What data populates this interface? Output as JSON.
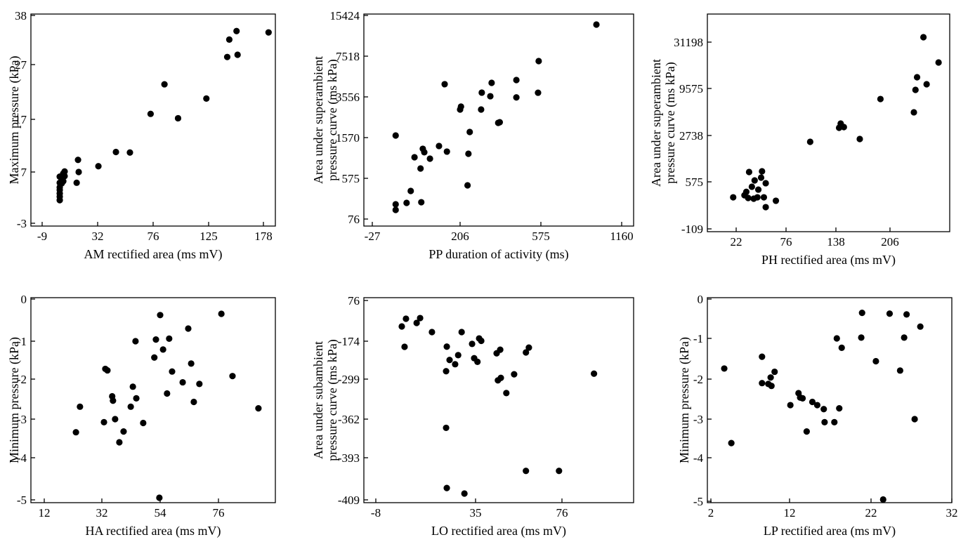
{
  "chart_data": [
    {
      "type": "scatter",
      "color": "#000000",
      "xlabel": "AM rectified area (ms mV)",
      "ylabel": [
        "Maximum pressure (kPa)"
      ],
      "xlim": [
        -17.3,
        189.6
      ],
      "xticks": [
        -9,
        32,
        76,
        125,
        178
      ],
      "ylim": [
        -3.5,
        38.3
      ],
      "yticks": [
        -3,
        7,
        17,
        27,
        38
      ],
      "x": [
        183,
        152,
        145,
        143,
        153,
        123,
        86,
        98,
        74,
        57.6,
        46.5,
        32.6,
        17.5,
        18,
        16.5,
        7.6,
        7.6,
        6.6,
        4,
        5.5,
        4,
        4,
        4,
        4,
        4,
        4,
        6.6
      ],
      "y": [
        34.2,
        34.5,
        32.6,
        28.7,
        29.2,
        20.8,
        23.4,
        17.2,
        18,
        10.7,
        10.8,
        8.1,
        9.3,
        7,
        4.9,
        7.1,
        6.2,
        5.2,
        6.1,
        4.8,
        4,
        3.5,
        2.8,
        2.2,
        1.5,
        4.9,
        6.7
      ]
    },
    {
      "type": "scatter",
      "color": "#000000",
      "xlabel": "PP duration of activity (ms)",
      "ylabel": [
        "Area under superambient",
        "pressure curve (ms kPa)"
      ],
      "xlim": [
        -49,
        1246
      ],
      "xticks": [
        -27,
        206,
        575,
        1160
      ],
      "ylim": [
        -10,
        15700
      ],
      "yticks": [
        76,
        575,
        1570,
        3556,
        7518,
        15424
      ],
      "x": [
        977,
        565,
        562,
        463,
        463,
        350,
        305,
        344,
        302,
        380,
        387,
        210,
        206,
        165,
        250,
        244,
        240,
        35,
        35,
        35,
        64,
        75,
        103,
        85,
        107,
        111,
        126,
        150,
        171,
        101
      ],
      "y": [
        13650,
        7040,
        3960,
        5195,
        3530,
        4920,
        3970,
        3620,
        2940,
        2290,
        2320,
        3080,
        2940,
        4790,
        1844,
        1175,
        489,
        1673,
        257,
        188,
        274,
        420,
        282,
        1090,
        1297,
        1211,
        1055,
        1365,
        1228,
        815
      ]
    },
    {
      "type": "scatter",
      "color": "#000000",
      "xlabel": "PH rectified area (ms mV)",
      "ylabel": [
        "Area under superambient",
        "pressure curve (ms kPa)"
      ],
      "xlim": [
        -7,
        281
      ],
      "xticks": [
        22,
        76,
        138,
        206
      ],
      "ylim": [
        -150,
        44300
      ],
      "yticks": [
        -109,
        575,
        2738,
        9575,
        31198
      ],
      "x": [
        248,
        267,
        240,
        252,
        238,
        236,
        194,
        144,
        142,
        148,
        168,
        106,
        41,
        39,
        36,
        50,
        49,
        42,
        54,
        46,
        45,
        35,
        52,
        65,
        54,
        19,
        31,
        33
      ],
      "y": [
        33490,
        21700,
        14820,
        11540,
        9370,
        6110,
        8040,
        4470,
        3860,
        3960,
        2575,
        2443,
        330,
        504,
        1034,
        1067,
        772,
        640,
        555,
        462,
        350,
        340,
        350,
        300,
        207,
        350,
        380,
        430
      ]
    },
    {
      "type": "scatter",
      "color": "#000000",
      "xlabel": "HA rectified area (ms mV)",
      "ylabel": [
        "Minimum pressure (kPa)"
      ],
      "xlim": [
        7.4,
        97.5
      ],
      "xticks": [
        12,
        32,
        54,
        76
      ],
      "ylim": [
        -5.07,
        0.03
      ],
      "yticks": [
        -5,
        -4,
        -3,
        -2,
        -1,
        0
      ],
      "x": [
        23,
        24.4,
        33.3,
        34.1,
        35.9,
        36.2,
        37,
        32.8,
        38.6,
        40.2,
        42.9,
        43.7,
        45,
        44.7,
        47.6,
        51.8,
        52.4,
        54,
        55.1,
        57.4,
        56.6,
        58.5,
        62.5,
        68.8,
        65.7,
        66.7,
        64.6,
        77.1,
        81.3,
        91.1,
        53.7
      ],
      "y": [
        -3.34,
        -2.69,
        -1.73,
        -1.77,
        -2.43,
        -2.54,
        -3,
        -3.08,
        -3.6,
        -3.32,
        -2.69,
        -2.19,
        -2.48,
        -1,
        -3.1,
        -1.43,
        -0.96,
        -0.38,
        -1.22,
        -0.94,
        -2.36,
        -1.8,
        -2.08,
        -2.12,
        -1.59,
        -2.57,
        -0.7,
        -0.35,
        -1.92,
        -2.73,
        -4.95
      ]
    },
    {
      "type": "scatter",
      "color": "#000000",
      "xlabel": "LO rectified area (ms mV)",
      "ylabel": [
        "Area under subambient",
        "pressure curve (ms kPa)"
      ],
      "xlim": [
        -13,
        110
      ],
      "xticks": [
        -8,
        35,
        76
      ],
      "ylim": [
        -410,
        93
      ],
      "yticks": [
        -409,
        -393,
        -362,
        -299,
        -174,
        76
      ],
      "x": [
        3.2,
        5,
        4.4,
        9.6,
        11.1,
        16.2,
        22.6,
        23.8,
        22.3,
        22.3,
        22.6,
        30.2,
        26.2,
        27.5,
        29,
        33.5,
        36.7,
        37.7,
        34.4,
        35.9,
        45,
        46.7,
        47,
        45.6,
        49.6,
        53.3,
        58.9,
        60.3,
        58.9,
        74.6,
        91.2
      ],
      "y": [
        -83.5,
        -36,
        -192.5,
        -62,
        -32,
        -118,
        -192,
        -236,
        -273,
        -369,
        -404.5,
        -406.6,
        -250,
        -220,
        -118,
        -183,
        -157,
        -172,
        -230,
        -242,
        -214,
        -202,
        -295,
        -301,
        -321,
        -283,
        -211,
        -195,
        -398,
        -398,
        -281
      ]
    },
    {
      "type": "scatter",
      "color": "#000000",
      "xlabel": "LP rectified area (ms mV)",
      "ylabel": [
        "Minimum pressure (kPa)"
      ],
      "xlim": [
        1.55,
        32
      ],
      "xticks": [
        2,
        12,
        22,
        32
      ],
      "ylim": [
        -5.03,
        0.04
      ],
      "yticks": [
        -5,
        -4,
        -3,
        -2,
        -1,
        0
      ],
      "x": [
        3.7,
        4.6,
        8.5,
        8.5,
        9.3,
        9.6,
        9.7,
        10.1,
        12.1,
        13.1,
        13.3,
        13.6,
        14.1,
        14.8,
        15.4,
        16.2,
        16.3,
        17.5,
        18.1,
        17.8,
        18.4,
        20.9,
        20.8,
        22.6,
        23.5,
        24.3,
        26.4,
        26.1,
        28.1,
        25.6,
        27.4
      ],
      "y": [
        -1.74,
        -3.62,
        -1.45,
        -2.1,
        -2.12,
        -1.96,
        -2.17,
        -1.82,
        -2.65,
        -2.35,
        -2.46,
        -2.48,
        -3.32,
        -2.57,
        -2.65,
        -2.75,
        -3.08,
        -3.08,
        -2.73,
        -1,
        -1.23,
        -0.35,
        -0.98,
        -1.56,
        -4.96,
        -0.37,
        -0.39,
        -0.98,
        -0.7,
        -1.79,
        -3
      ]
    }
  ]
}
